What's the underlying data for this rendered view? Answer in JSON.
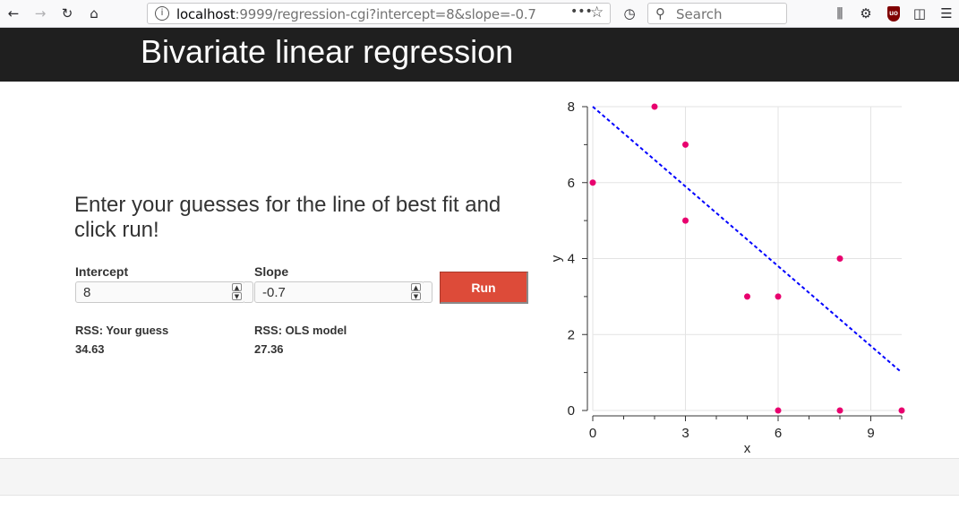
{
  "browser": {
    "url_host": "localhost",
    "url_rest": ":9999/regression-cgi?intercept=8&slope=-0.7",
    "search_placeholder": "Search"
  },
  "app": {
    "title": "Bivariate linear regression"
  },
  "form": {
    "prompt": "Enter your guesses for the line of best fit and click run!",
    "intercept_label": "Intercept",
    "intercept_value": "8",
    "slope_label": "Slope",
    "slope_value": "-0.7",
    "run_label": "Run"
  },
  "results": {
    "rss_guess_label": "RSS: Your guess",
    "rss_guess_value": "34.63",
    "rss_ols_label": "RSS: OLS model",
    "rss_ols_value": "27.36"
  },
  "chart_data": {
    "type": "scatter",
    "xlabel": "x",
    "ylabel": "y",
    "xlim": [
      0,
      10
    ],
    "ylim": [
      0,
      8
    ],
    "x_ticks": [
      0,
      3,
      6,
      9
    ],
    "y_ticks": [
      0,
      2,
      4,
      6,
      8
    ],
    "grid": true,
    "point_color": "#e8006e",
    "line_color": "#0000ff",
    "points": [
      {
        "x": 0,
        "y": 6
      },
      {
        "x": 2,
        "y": 8
      },
      {
        "x": 3,
        "y": 7
      },
      {
        "x": 3,
        "y": 5
      },
      {
        "x": 5,
        "y": 3
      },
      {
        "x": 6,
        "y": 3
      },
      {
        "x": 6,
        "y": 0
      },
      {
        "x": 8,
        "y": 4
      },
      {
        "x": 8,
        "y": 0
      },
      {
        "x": 10,
        "y": 0
      }
    ],
    "guess_line": {
      "intercept": 8,
      "slope": -0.7,
      "style": "dashed"
    }
  }
}
